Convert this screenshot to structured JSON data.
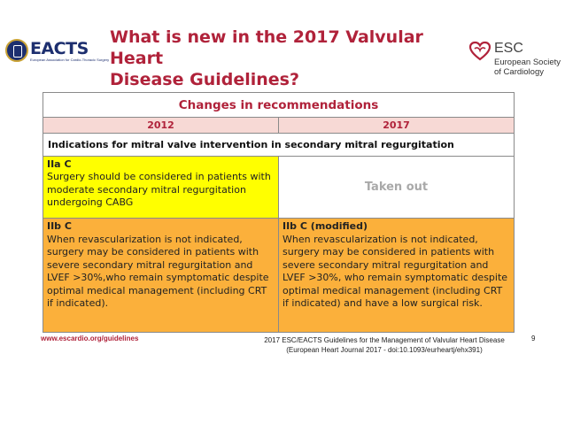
{
  "header": {
    "left_logo": {
      "text": "EACTS",
      "subtext": "European Association for Cardio-Thoracic Surgery"
    },
    "title_line1": "What is new in the 2017 Valvular Heart",
    "title_line2": "Disease Guidelines?",
    "right_logo": {
      "text": "ESC",
      "line1": "European Society",
      "line2": "of Cardiology"
    }
  },
  "table": {
    "caption": "Changes in recommendations",
    "columns": [
      "2012",
      "2017"
    ],
    "indication": "Indications for mitral valve intervention in secondary mitral regurgitation",
    "rows": [
      {
        "left": {
          "class": "IIa C",
          "text": "Surgery should be considered in patients with moderate secondary mitral regurgitation undergoing CABG"
        },
        "right": {
          "text": "Taken out"
        }
      },
      {
        "left": {
          "class": "IIb C",
          "text": "When revascularization is not indicated, surgery may be considered in patients with severe secondary mitral regurgitation and LVEF >30%,who remain symptomatic despite optimal medical management (including CRT if indicated)."
        },
        "right": {
          "class": "IIb C (modified)",
          "text": "When revascularization is not indicated, surgery may be considered in patients with severe secondary mitral regurgitation and LVEF >30%, who remain symptomatic despite optimal medical management (including CRT if indicated) and have a low surgical risk."
        }
      }
    ]
  },
  "footer": {
    "url": "www.escardio.org/guidelines",
    "reference_line1": "2017 ESC/EACTS Guidelines for the Management of Valvular Heart Disease",
    "reference_line2": "(European Heart Journal 2017 - doi:10.1093/eurheartj/ehx391)",
    "page_number": "9"
  },
  "colors": {
    "title_red": "#b0223a",
    "class_iia_yellow": "#ffff00",
    "class_iib_orange": "#fbb03b",
    "year_header_pink": "#f7d9d5",
    "eacts_navy": "#1d2f6f"
  }
}
